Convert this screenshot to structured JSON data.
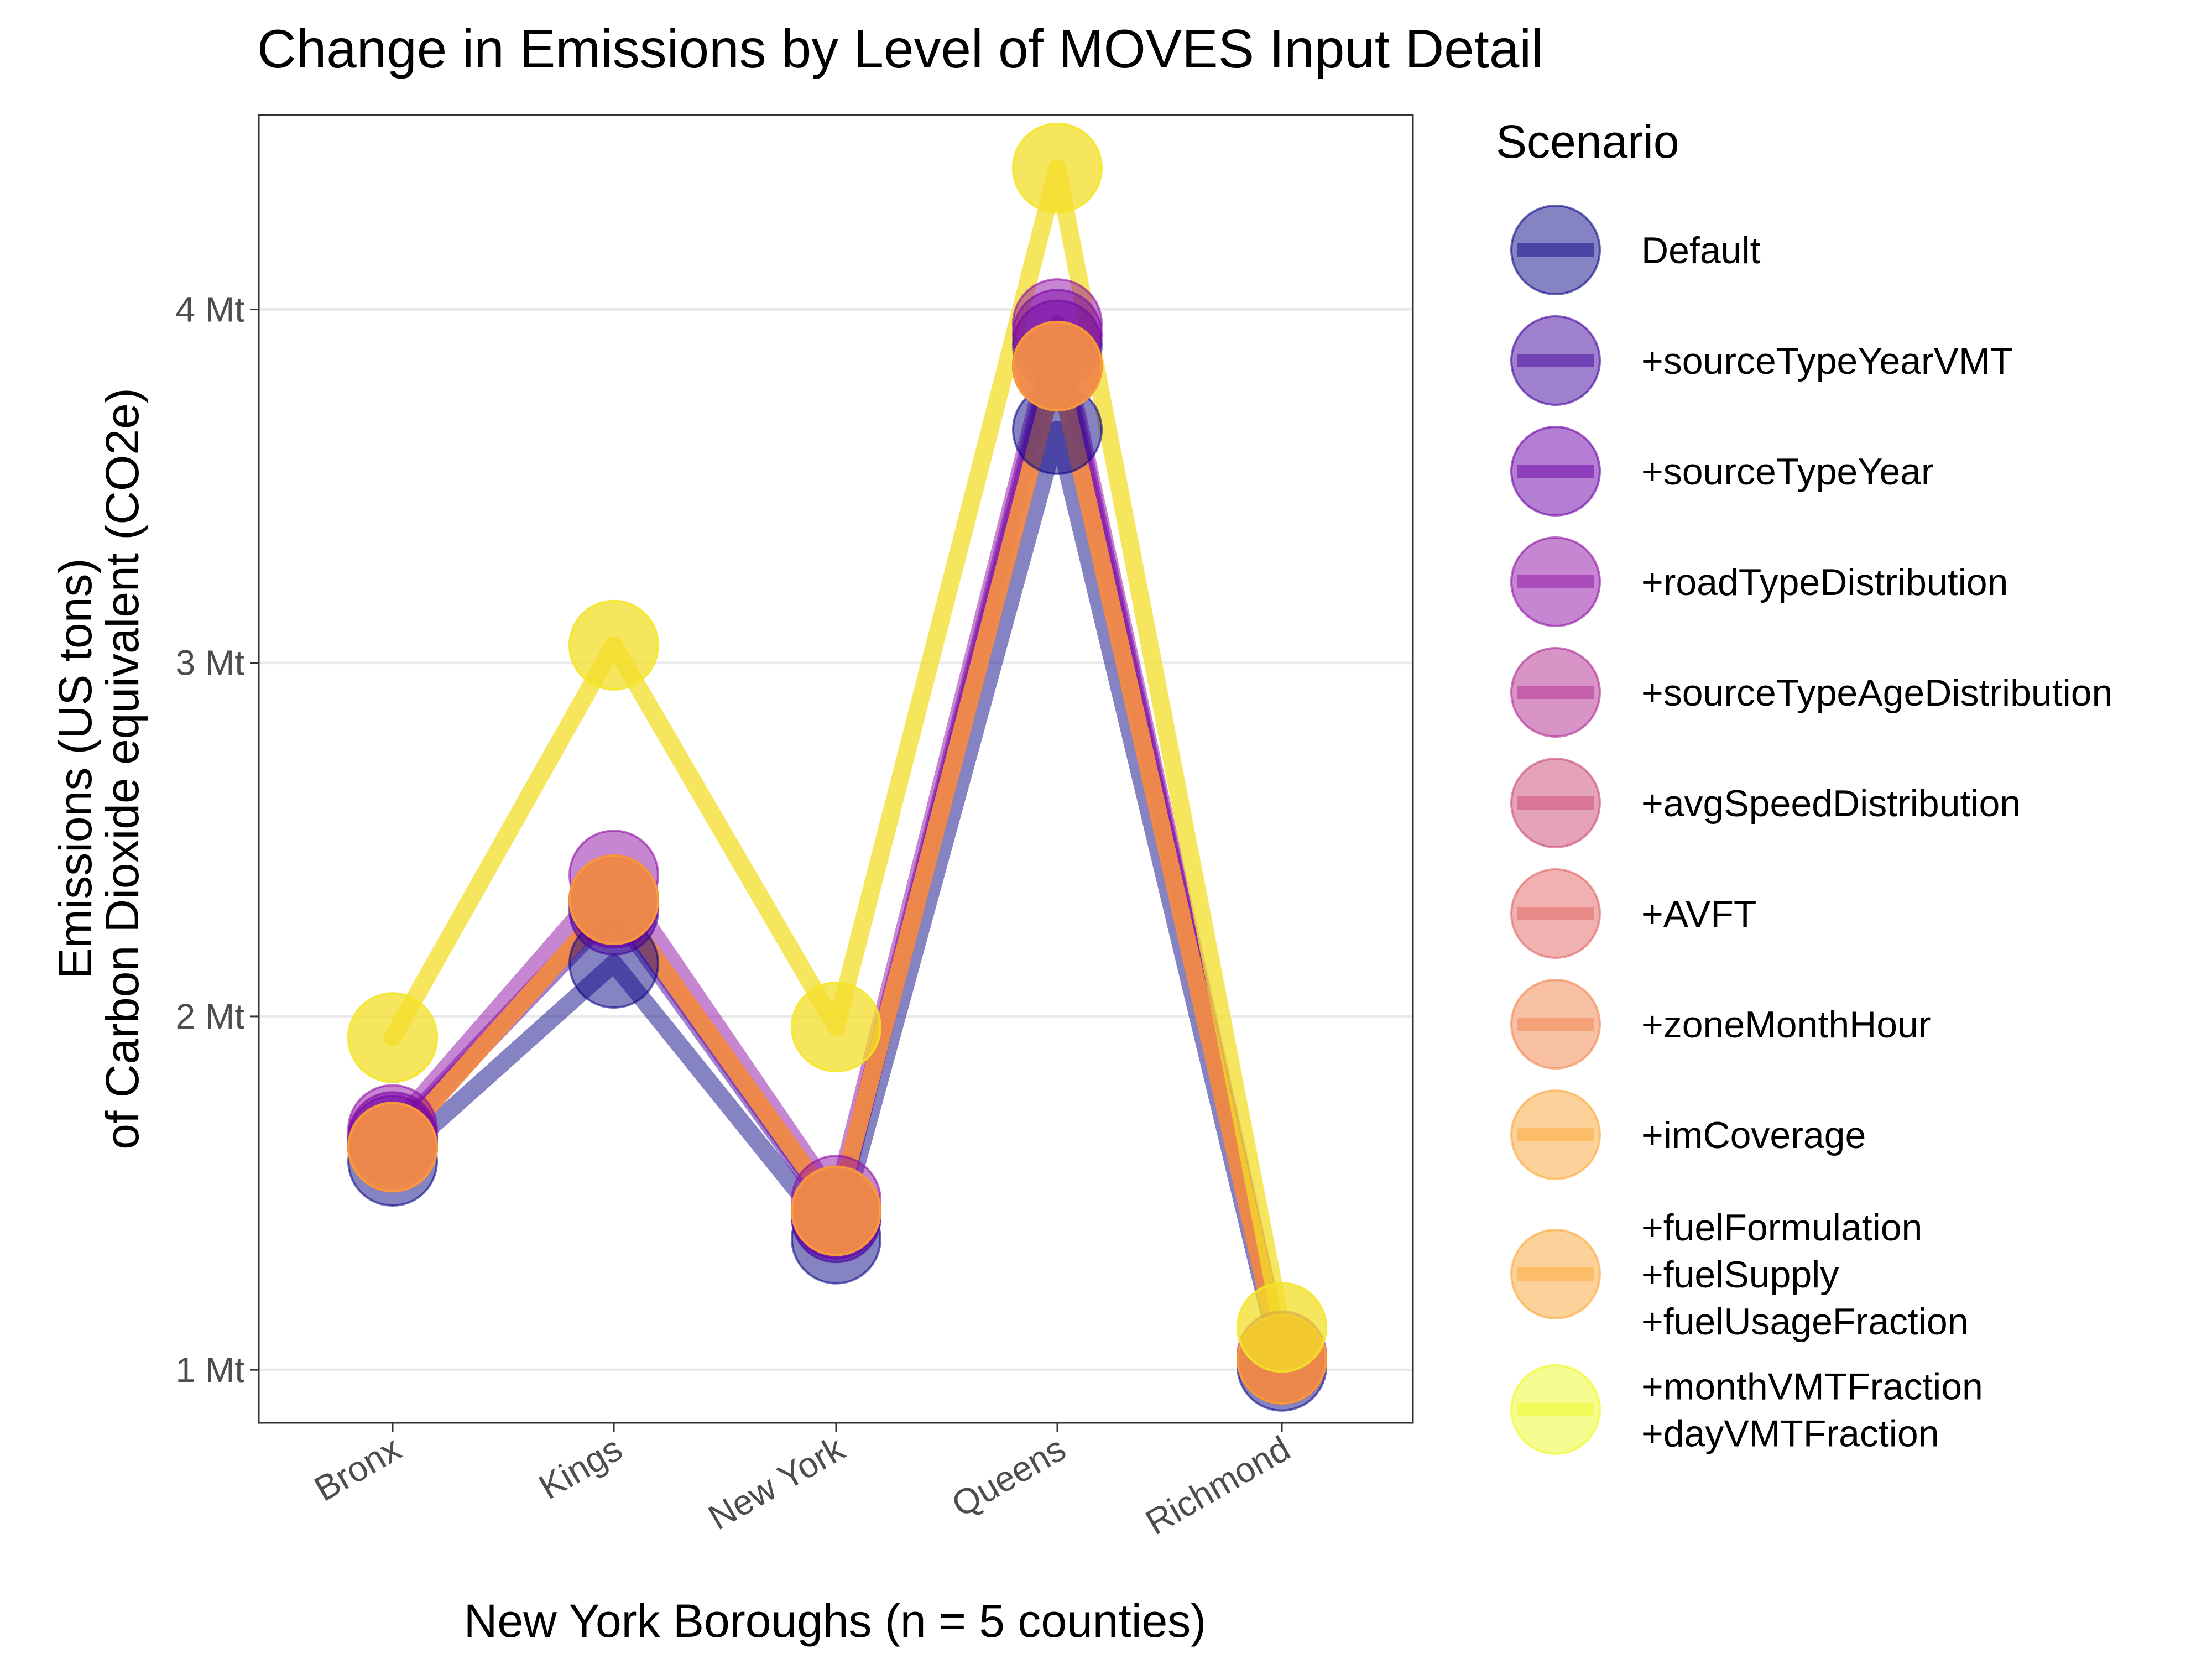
{
  "chart_data": {
    "type": "line",
    "title": "Change in Emissions by Level of MOVES Input Detail",
    "xlabel": "New York Boroughs (n = 5 counties)",
    "ylabel": [
      "Emissions (US tons)",
      "of Carbon Dioxide equivalent (CO2e)"
    ],
    "categories": [
      "Bronx",
      "Kings",
      "New York",
      "Queens",
      "Richmond"
    ],
    "y_ticks": [
      {
        "value": 1,
        "label": "1 Mt"
      },
      {
        "value": 2,
        "label": "2 Mt"
      },
      {
        "value": 3,
        "label": "3 Mt"
      },
      {
        "value": 4,
        "label": "4 Mt"
      }
    ],
    "ylim": [
      0.85,
      4.55
    ],
    "y_unit": "Mt",
    "grid": "horizontal major",
    "legend_position": "right",
    "legend_title": "Scenario",
    "series": [
      {
        "name": [
          "Default"
        ],
        "color": "#0d0887",
        "values": [
          1.59,
          2.15,
          1.37,
          3.66,
          1.01
        ]
      },
      {
        "name": [
          "+sourceTypeYearVMT"
        ],
        "color": "#41049d",
        "values": [
          1.65,
          2.3,
          1.43,
          3.9,
          1.03
        ]
      },
      {
        "name": [
          "+sourceTypeYear"
        ],
        "color": "#6a00a8",
        "values": [
          1.66,
          2.32,
          1.44,
          3.93,
          1.03
        ]
      },
      {
        "name": [
          "+roadTypeDistribution"
        ],
        "color": "#8f0da4",
        "values": [
          1.68,
          2.4,
          1.48,
          3.96,
          1.04
        ]
      },
      {
        "name": [
          "+sourceTypeAgeDistribution"
        ],
        "color": "#b12a90",
        "values": [
          1.63,
          2.33,
          1.45,
          3.84,
          1.03
        ]
      },
      {
        "name": [
          "+avgSpeedDistribution"
        ],
        "color": "#cc4778",
        "values": [
          1.63,
          2.33,
          1.45,
          3.84,
          1.03
        ]
      },
      {
        "name": [
          "+AVFT"
        ],
        "color": "#e16462",
        "values": [
          1.63,
          2.33,
          1.45,
          3.84,
          1.03
        ]
      },
      {
        "name": [
          "+zoneMonthHour"
        ],
        "color": "#f2844b",
        "values": [
          1.63,
          2.33,
          1.45,
          3.84,
          1.03
        ]
      },
      {
        "name": [
          "+imCoverage"
        ],
        "color": "#fca636",
        "values": [
          1.63,
          2.33,
          1.45,
          3.84,
          1.03
        ]
      },
      {
        "name": [
          "+fuelFormulation",
          "+fuelSupply",
          "+fuelUsageFraction"
        ],
        "color": "#fca636",
        "values": [
          1.94,
          3.05,
          1.97,
          4.4,
          1.12
        ]
      },
      {
        "name": [
          "+monthVMTFraction",
          "+dayVMTFraction"
        ],
        "color": "#f0f921",
        "values": [
          1.94,
          3.05,
          1.97,
          4.4,
          1.12
        ]
      }
    ]
  }
}
